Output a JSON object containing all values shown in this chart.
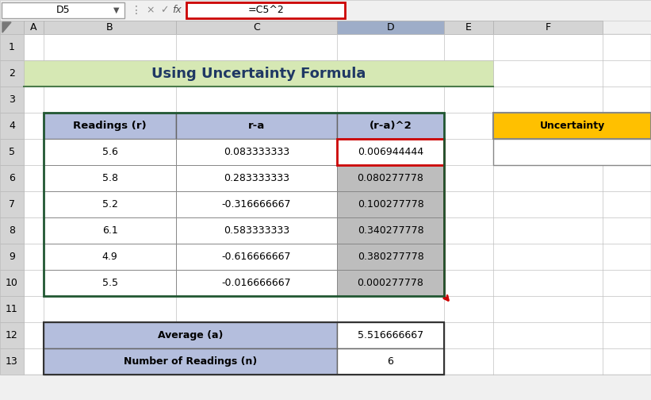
{
  "title": "Using Uncertainty Formula",
  "title_bg": "#d6e8b4",
  "title_color": "#1f3864",
  "toolbar_text": "D5",
  "formula_text": "=C5^2",
  "col_headers": [
    "A",
    "B",
    "C",
    "D",
    "E",
    "F"
  ],
  "row_numbers": [
    "1",
    "2",
    "3",
    "4",
    "5",
    "6",
    "7",
    "8",
    "9",
    "10",
    "11",
    "12",
    "13"
  ],
  "header_row": [
    "Readings (r)",
    "r-a",
    "(r-a)^2"
  ],
  "header_bg": "#b4bedd",
  "data_rows": [
    [
      "5.6",
      "0.083333333",
      "0.006944444"
    ],
    [
      "5.8",
      "0.283333333",
      "0.080277778"
    ],
    [
      "5.2",
      "-0.316666667",
      "0.100277778"
    ],
    [
      "6.1",
      "0.583333333",
      "0.340277778"
    ],
    [
      "4.9",
      "-0.616666667",
      "0.380277778"
    ],
    [
      "5.5",
      "-0.016666667",
      "0.000277778"
    ]
  ],
  "d_col_bg": "#bdbdbd",
  "uncertainty_label": "Uncertainty",
  "uncertainty_bg": "#ffc000",
  "bottom_labels": [
    "Average (a)",
    "Number of Readings (n)"
  ],
  "bottom_values": [
    "5.516666667",
    "6"
  ],
  "bottom_header_bg": "#b4bedd",
  "selected_cell_border": "#cc0000",
  "table_border_color": "#215732",
  "arrow_color": "#cc0000",
  "col_header_selected_bg": "#9eadc8",
  "col_header_bg": "#d4d4d4",
  "row_header_bg": "#d4d4d4",
  "grid_color": "#c0c0c0",
  "toolbar_bg": "#f0f0f0",
  "spreadsheet_bg": "#ffffff"
}
